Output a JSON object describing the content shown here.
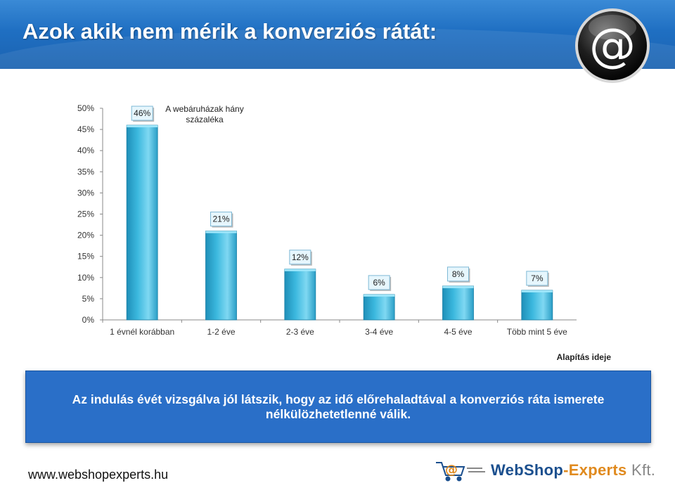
{
  "header": {
    "title": "Azok akik nem mérik a konverziós rátát:",
    "icon": "at-sign-icon"
  },
  "chart_data": {
    "type": "bar",
    "title": "A webáruházak hány százaléka",
    "xlabel": "Alapítás ideje",
    "ylabel": "",
    "categories": [
      "1 évnél korábban",
      "1-2 éve",
      "2-3 éve",
      "3-4 éve",
      "4-5 éve",
      "Több mint 5 éve"
    ],
    "values": [
      46,
      21,
      12,
      6,
      8,
      7
    ],
    "value_labels": [
      "46%",
      "21%",
      "12%",
      "6%",
      "8%",
      "7%"
    ],
    "ylim": [
      0,
      50
    ],
    "yticks": [
      "0%",
      "5%",
      "10%",
      "15%",
      "20%",
      "25%",
      "30%",
      "35%",
      "40%",
      "45%",
      "50%"
    ],
    "grid": false,
    "bar_color": "#3bb8de"
  },
  "info_box": {
    "text": "Az indulás évét vizsgálva jól látszik, hogy az idő előrehaladtával a konverziós ráta ismerete nélkülözhetetlenné válik."
  },
  "footer": {
    "url": "www.webshopexperts.hu",
    "brand_part1": "WebShop",
    "brand_part2": "-Experts",
    "brand_part3": " Kft.",
    "logo_icon": "shopping-cart-at-icon"
  }
}
